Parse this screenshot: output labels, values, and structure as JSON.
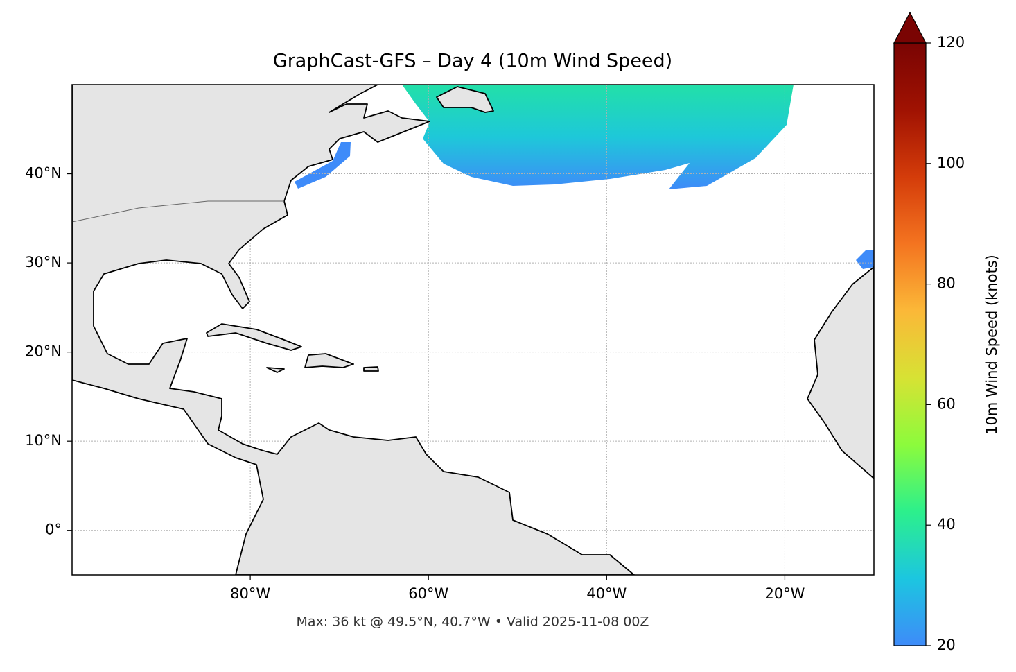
{
  "chart_data": {
    "type": "map",
    "title": "GraphCast-GFS – Day 4 (10m Wind Speed)",
    "footer": "Max: 36 kt @ 49.5°N, 40.7°W • Valid 2025-11-08 00Z",
    "xlim": [
      -100,
      -10
    ],
    "ylim": [
      -5,
      50
    ],
    "xticks": [
      {
        "value": -80,
        "label": "80°W"
      },
      {
        "value": -60,
        "label": "60°W"
      },
      {
        "value": -40,
        "label": "40°W"
      },
      {
        "value": -20,
        "label": "20°W"
      }
    ],
    "yticks": [
      {
        "value": 0,
        "label": "0°"
      },
      {
        "value": 10,
        "label": "10°N"
      },
      {
        "value": 20,
        "label": "20°N"
      },
      {
        "value": 30,
        "label": "30°N"
      },
      {
        "value": 40,
        "label": "40°N"
      }
    ],
    "grid": true,
    "colorbar": {
      "label": "10m Wind Speed (knots)",
      "lim": [
        20,
        120
      ],
      "ticks": [
        20,
        40,
        60,
        80,
        100,
        120
      ],
      "colors": [
        "#3e8bf9",
        "#1cc6e0",
        "#2cf08c",
        "#8cfb3c",
        "#d7e234",
        "#fbb838",
        "#f47420",
        "#d43c0a",
        "#a01202",
        "#7a0403"
      ]
    }
  }
}
